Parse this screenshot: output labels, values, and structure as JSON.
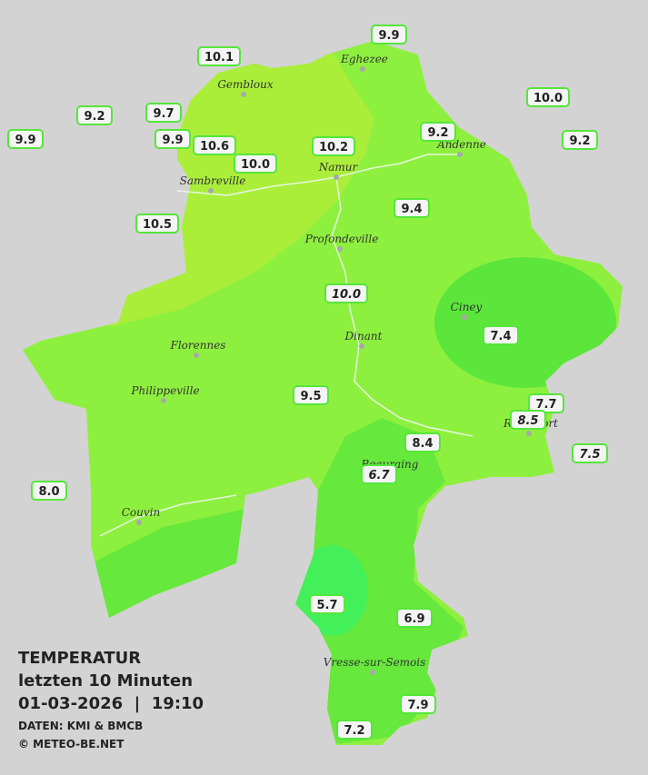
{
  "title": {
    "heading": "TEMPERATUR",
    "period": "letzten 10 Minuten",
    "timestamp": "01-03-2026  |  19:10",
    "source": "DATEN: KMI & BMCB",
    "copyright": "© METEO-BE.NET"
  },
  "towns": [
    "Eghezee",
    "Gembloux",
    "Andenne",
    "Namur",
    "Sambreville",
    "Profondeville",
    "Ciney",
    "Dinant",
    "Florennes",
    "Philippeville",
    "Rochefort",
    "Beauraing",
    "Couvin",
    "Vresse-sur-Semois"
  ],
  "stations": [
    "9.9",
    "10.1",
    "10.0",
    "9.2",
    "9.7",
    "9.9",
    "9.9",
    "10.6",
    "10.2",
    "9.2",
    "9.2",
    "10.0",
    "10.5",
    "9.4",
    "10.0",
    "7.4",
    "9.5",
    "7.7",
    "8.5",
    "7.5",
    "8.4",
    "6.7",
    "8.0",
    "5.7",
    "6.9",
    "7.9",
    "7.2"
  ]
}
